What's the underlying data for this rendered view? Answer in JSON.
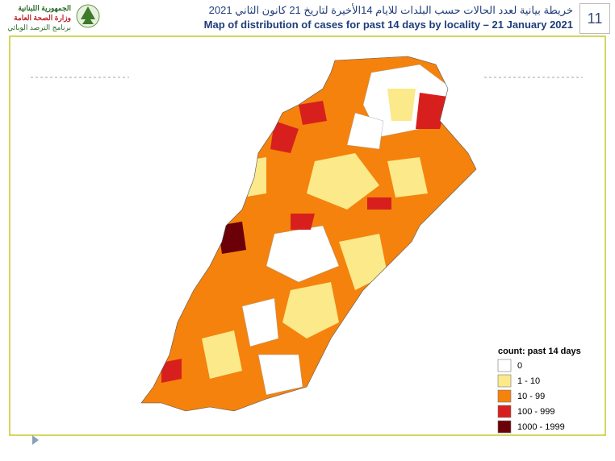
{
  "header": {
    "page_number": "11",
    "title_ar": "خريطة بيانية لعدد الحالات حسب البلدات للايام 14الأخيرة لتاريخ  21 كانون الثاني 2021",
    "title_en": "Map of distribution of cases for past 14 days by locality – 21 January 2021"
  },
  "logo": {
    "lines": [
      "الجمهورية اللبنانية",
      "وزارة الصحة العامة",
      "برنامج الترصد الوبائي"
    ]
  },
  "legend": {
    "title": "count: past 14 days",
    "items": [
      {
        "label": "0",
        "color": "#ffffff"
      },
      {
        "label": "1 - 10",
        "color": "#fbe98a"
      },
      {
        "label": "10 - 99",
        "color": "#f5820c"
      },
      {
        "label": "100 - 999",
        "color": "#d7201e"
      },
      {
        "label": "1000 - 1999",
        "color": "#6b0008"
      }
    ]
  }
}
